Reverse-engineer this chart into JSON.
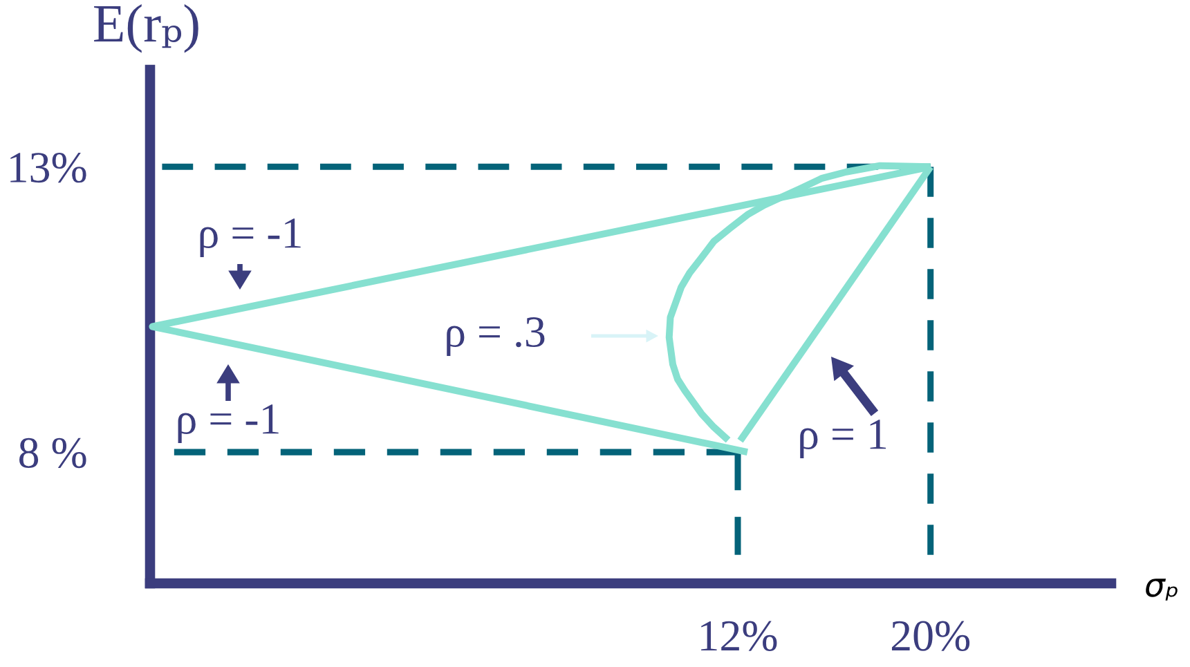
{
  "chart_data": {
    "type": "line",
    "xlabel": "σₚ",
    "ylabel": "E(rₚ)",
    "xlim": [
      -12.4,
      27.5
    ],
    "ylim": [
      5.7,
      14.7
    ],
    "xticks": [
      {
        "value": 12,
        "label": "12%"
      },
      {
        "value": 20,
        "label": "20%"
      }
    ],
    "yticks": [
      {
        "value": 8,
        "label": "8 %"
      },
      {
        "value": 13,
        "label": "13%"
      }
    ],
    "series": [
      {
        "color": "#046379",
        "line_style": "dashed",
        "x": [
          -11.9,
          20
        ],
        "values": [
          13,
          13
        ]
      },
      {
        "color": "#046379",
        "line_style": "dashed",
        "x": [
          20,
          20
        ],
        "values": [
          13,
          6.2
        ]
      },
      {
        "color": "#046379",
        "line_style": "dashed",
        "x": [
          -11.4,
          12
        ],
        "values": [
          8,
          8
        ]
      },
      {
        "color": "#046379",
        "line_style": "dashed",
        "x": [
          12,
          12
        ],
        "values": [
          8,
          6.2
        ]
      },
      {
        "color": "#86e0d0",
        "line_style": "solid",
        "x": [
          20,
          -12.3,
          12.4
        ],
        "values": [
          13,
          10.2,
          8.0
        ]
      },
      {
        "color": "#86e0d0",
        "line_style": "solid",
        "x": [
          12.1,
          20
        ],
        "values": [
          8.2,
          13
        ]
      },
      {
        "color": "#86e0d0",
        "line_style": "solid",
        "x": [
          20.0,
          17.9,
          16.5,
          15.5,
          14.6,
          13.1,
          12.4,
          11.7,
          11.0,
          10.5,
          10.0,
          9.65,
          9.2,
          9.15,
          9.3,
          9.5,
          9.8,
          10.5,
          11.0,
          11.6
        ],
        "values": [
          13.0,
          13.02,
          12.91,
          12.8,
          12.62,
          12.33,
          12.16,
          11.93,
          11.69,
          11.41,
          11.14,
          10.89,
          10.36,
          10.01,
          9.54,
          9.28,
          9.08,
          8.67,
          8.44,
          8.21
        ]
      }
    ],
    "annotations": [
      "ρ = -1",
      "ρ = -1",
      "ρ = .3",
      "ρ = 1"
    ]
  }
}
